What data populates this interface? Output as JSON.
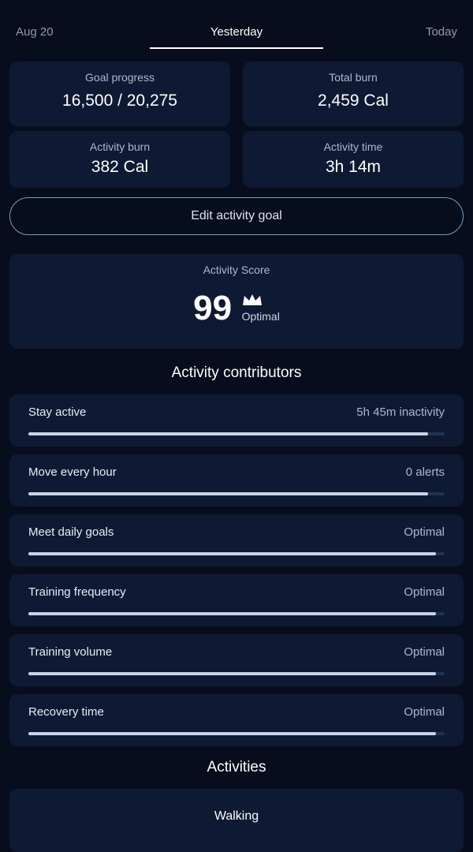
{
  "tabs": [
    "Aug 20",
    "Yesterday",
    "Today"
  ],
  "summary": [
    {
      "label": "Goal progress",
      "value": "16,500 / 20,275"
    },
    {
      "label": "Total burn",
      "value": "2,459 Cal"
    },
    {
      "label": "Activity burn",
      "value": "382 Cal"
    },
    {
      "label": "Activity time",
      "value": "3h 14m"
    }
  ],
  "edit_button": "Edit activity goal",
  "score": {
    "label": "Activity Score",
    "value": 99,
    "status": "Optimal"
  },
  "contributors_heading": "Activity contributors",
  "contributors": [
    {
      "label": "Stay active",
      "value": "5h 45m inactivity"
    },
    {
      "label": "Move every hour",
      "value": "0 alerts"
    },
    {
      "label": "Meet daily goals",
      "value": "Optimal"
    },
    {
      "label": "Training frequency",
      "value": "Optimal"
    },
    {
      "label": "Training volume",
      "value": "Optimal"
    },
    {
      "label": "Recovery time",
      "value": "Optimal"
    }
  ],
  "activities_heading": "Activities",
  "activities": [
    {
      "label": "Walking"
    }
  ]
}
